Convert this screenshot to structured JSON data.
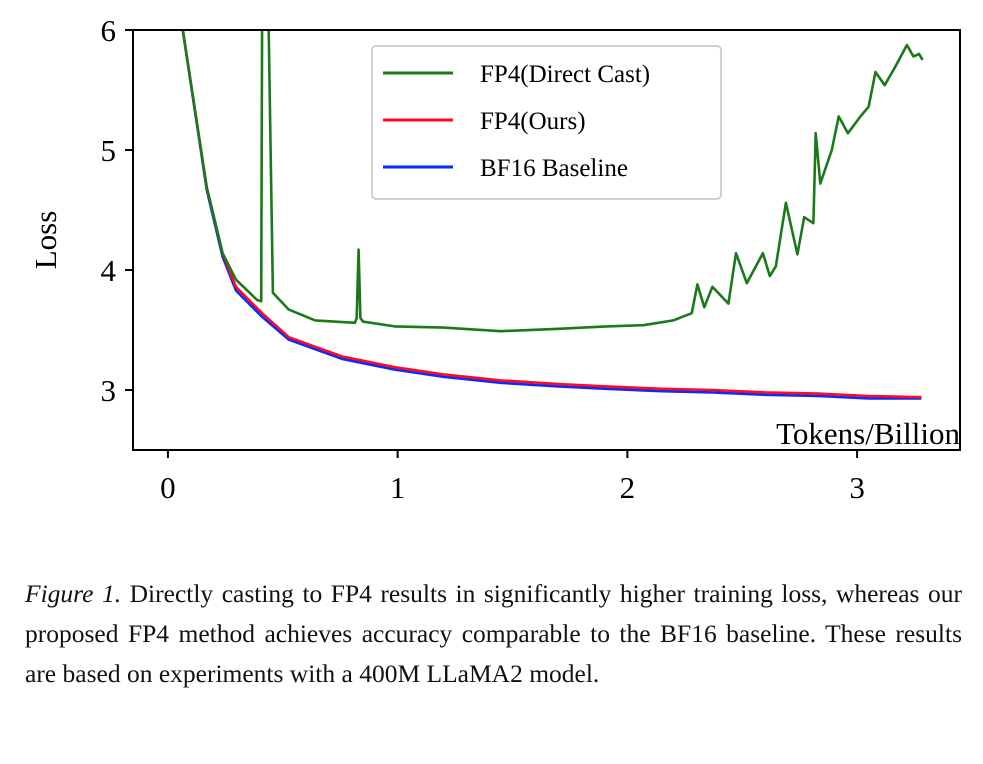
{
  "chart_data": {
    "type": "line",
    "title": "",
    "xlabel": "Tokens/Billion",
    "ylabel": "Loss",
    "xlim": [
      -0.152,
      3.448
    ],
    "ylim": [
      2.5,
      6.0
    ],
    "xticks": [
      0,
      1,
      2,
      3
    ],
    "yticks": [
      3,
      4,
      5,
      6
    ],
    "grid": false,
    "legend_placement": "top-center",
    "series": [
      {
        "name": "FP4(Direct Cast)",
        "color": "#1a7a1a",
        "x": [
          0.065,
          0.169,
          0.238,
          0.296,
          0.388,
          0.406,
          0.41,
          0.418,
          0.438,
          0.457,
          0.526,
          0.641,
          0.814,
          0.822,
          0.83,
          0.838,
          0.849,
          0.987,
          1.2,
          1.448,
          1.7,
          1.909,
          2.07,
          2.2,
          2.28,
          2.305,
          2.335,
          2.37,
          2.44,
          2.473,
          2.52,
          2.59,
          2.62,
          2.646,
          2.69,
          2.74,
          2.77,
          2.81,
          2.82,
          2.84,
          2.89,
          2.92,
          2.96,
          3.015,
          3.05,
          3.08,
          3.12,
          3.165,
          3.217,
          3.245,
          3.27,
          3.285
        ],
        "y": [
          6.0,
          4.69,
          4.14,
          3.92,
          3.75,
          3.74,
          6.1,
          6.1,
          6.1,
          3.81,
          3.67,
          3.58,
          3.56,
          3.6,
          4.17,
          3.6,
          3.57,
          3.53,
          3.52,
          3.49,
          3.51,
          3.53,
          3.54,
          3.58,
          3.64,
          3.88,
          3.69,
          3.86,
          3.72,
          4.14,
          3.89,
          4.14,
          3.95,
          4.03,
          4.56,
          4.13,
          4.44,
          4.39,
          5.14,
          4.72,
          5.0,
          5.28,
          5.14,
          5.28,
          5.36,
          5.65,
          5.54,
          5.69,
          5.875,
          5.78,
          5.8,
          5.75
        ]
      },
      {
        "name": "FP4(Ours)",
        "color": "#ff0a1e",
        "x": [
          0.065,
          0.169,
          0.238,
          0.296,
          0.41,
          0.526,
          0.757,
          0.987,
          1.2,
          1.448,
          1.7,
          1.909,
          2.15,
          2.37,
          2.6,
          2.83,
          3.05,
          3.28
        ],
        "y": [
          6.0,
          4.69,
          4.14,
          3.86,
          3.64,
          3.44,
          3.28,
          3.19,
          3.13,
          3.08,
          3.05,
          3.03,
          3.01,
          3.0,
          2.98,
          2.97,
          2.95,
          2.94
        ]
      },
      {
        "name": "BF16 Baseline",
        "color": "#0a2aff",
        "x": [
          0.065,
          0.169,
          0.238,
          0.296,
          0.41,
          0.526,
          0.757,
          0.987,
          1.2,
          1.448,
          1.7,
          1.909,
          2.15,
          2.37,
          2.6,
          2.83,
          3.05,
          3.28
        ],
        "y": [
          6.0,
          4.67,
          4.11,
          3.83,
          3.61,
          3.42,
          3.26,
          3.17,
          3.11,
          3.06,
          3.03,
          3.01,
          2.99,
          2.98,
          2.96,
          2.95,
          2.93,
          2.93
        ]
      }
    ]
  },
  "caption": {
    "label": "Figure 1.",
    "text": " Directly casting to FP4 results in significantly higher training loss, whereas our proposed FP4 method achieves accuracy comparable to the BF16 baseline.  These results are based on experiments with a 400M LLaMA2 model."
  }
}
